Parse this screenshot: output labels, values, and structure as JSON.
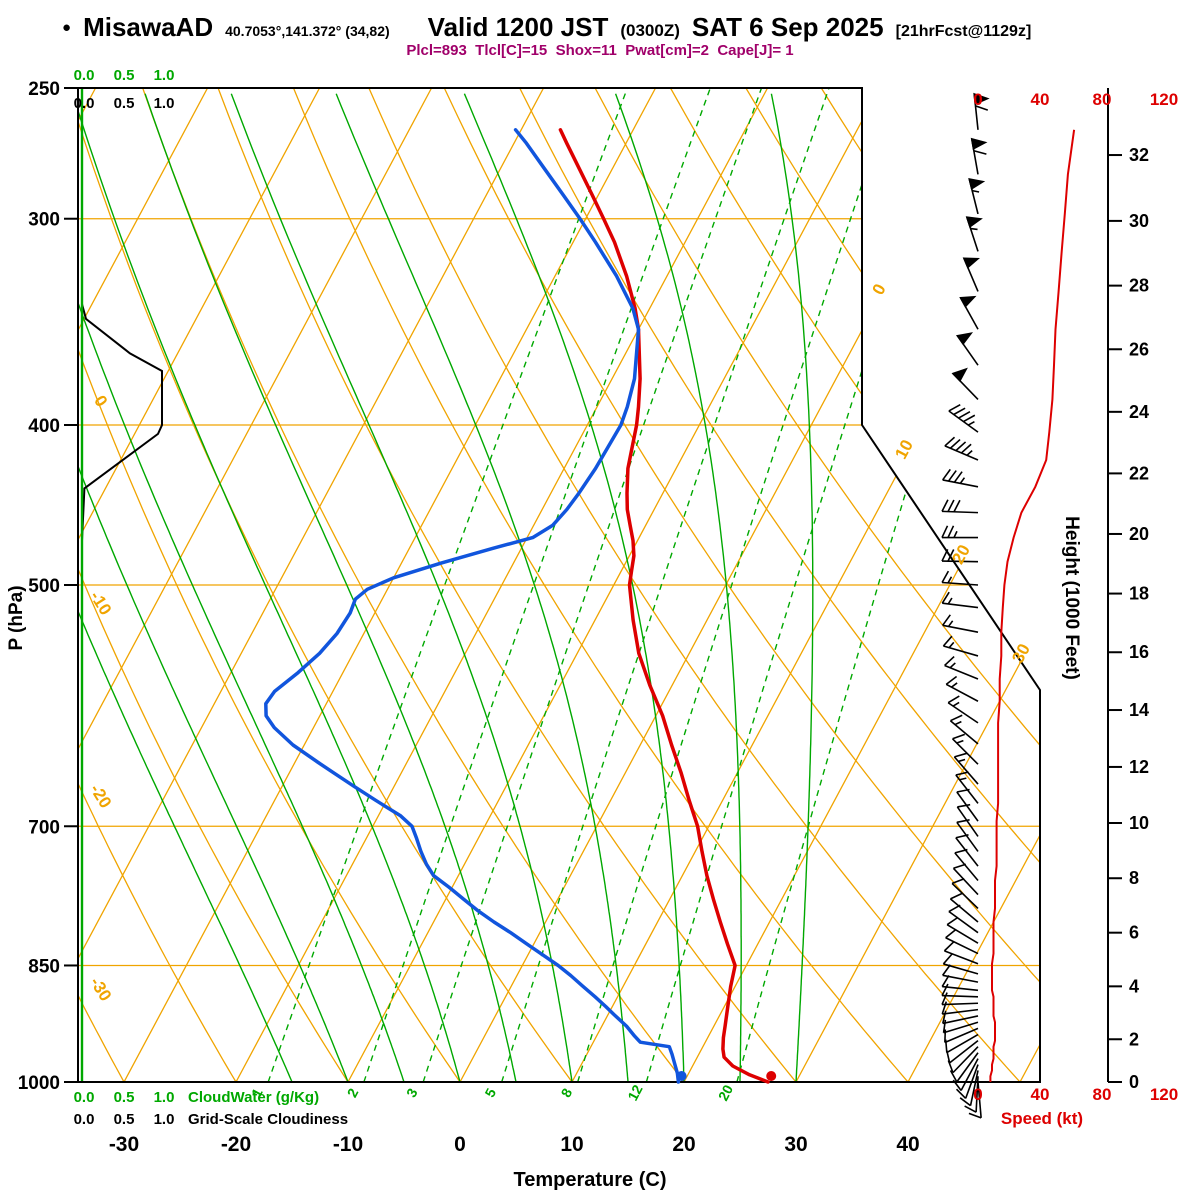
{
  "header": {
    "bullet": "●",
    "station": "MisawaAD",
    "coords": "40.7053°,141.372° (34,82)",
    "valid": "Valid 1200 JST",
    "valid_z": "(0300Z)",
    "valid_date": "SAT 6 Sep 2025",
    "forecast": "[21hrFcst@1129z]",
    "params": "Plcl=893  Tlcl[C]=15  Shox=11  Pwat[cm]=2  Cape[J]= 1"
  },
  "colors": {
    "grid_orange": "#f0a400",
    "line_green": "#00a800",
    "temp_red": "#dd0000",
    "dew_blue": "#1155dd",
    "params_magenta": "#a0006a",
    "black": "#000000"
  },
  "axes": {
    "pressure": {
      "label": "P (hPa)",
      "ticks": [
        250,
        300,
        400,
        500,
        700,
        850,
        1000
      ]
    },
    "temperature": {
      "label": "Temperature (C)",
      "ticks": [
        -30,
        -20,
        -10,
        0,
        10,
        20,
        30,
        40
      ]
    },
    "height": {
      "label": "Height (1000 Feet)",
      "ticks": [
        0,
        2,
        4,
        6,
        8,
        10,
        12,
        14,
        16,
        18,
        20,
        22,
        24,
        26,
        28,
        30,
        32
      ]
    },
    "speed": {
      "label": "Speed (kt)",
      "ticks": [
        0,
        40,
        80,
        120
      ]
    },
    "isotherm_edge_labels": [
      0,
      10,
      20,
      30
    ],
    "dry_adiabat_edge_labels": [
      0,
      -10,
      -20,
      -30
    ],
    "mixing_ratio_labels": [
      1,
      2,
      3,
      5,
      8,
      12,
      20
    ],
    "cloudwater": {
      "label": "CloudWater (g/Kg)",
      "ticks": [
        "0.0",
        "0.5",
        "1.0"
      ]
    },
    "cloudiness": {
      "label": "Grid-Scale Cloudiness",
      "ticks": [
        "0.0",
        "0.5",
        "1.0"
      ]
    }
  },
  "chart_data": {
    "type": "line",
    "chart_kind": "skew-t-log-p-sounding",
    "pressure_range_hpa": [
      250,
      1000
    ],
    "temperature_axis_range_c": [
      -30,
      40
    ],
    "surface_temperature_c": 27.5,
    "surface_dewpoint_c": 19.5,
    "isotherms_c": {
      "start": -100,
      "end": 50,
      "step": 10
    },
    "dry_adiabats_c": {
      "start": -40,
      "end": 110,
      "step": 10
    },
    "moist_adiabats_c": [
      -15,
      -10,
      -5,
      0,
      5,
      10,
      15,
      20,
      25,
      30
    ],
    "mixing_ratio_gkg": [
      1,
      2,
      3,
      5,
      8,
      12,
      20
    ],
    "temperature_profile_c": [
      [
        1000,
        27.5
      ],
      [
        990,
        25.5
      ],
      [
        978,
        23.6
      ],
      [
        966,
        22.4
      ],
      [
        955,
        21.9
      ],
      [
        940,
        21.4
      ],
      [
        925,
        21.0
      ],
      [
        900,
        20.3
      ],
      [
        875,
        19.6
      ],
      [
        850,
        19.0
      ],
      [
        825,
        17.3
      ],
      [
        800,
        15.6
      ],
      [
        775,
        13.9
      ],
      [
        750,
        12.2
      ],
      [
        725,
        10.6
      ],
      [
        700,
        9.0
      ],
      [
        675,
        7.0
      ],
      [
        650,
        5.0
      ],
      [
        625,
        2.8
      ],
      [
        600,
        0.6
      ],
      [
        575,
        -2.0
      ],
      [
        550,
        -4.5
      ],
      [
        525,
        -6.6
      ],
      [
        500,
        -8.6
      ],
      [
        490,
        -9.1
      ],
      [
        480,
        -9.6
      ],
      [
        470,
        -10.4
      ],
      [
        460,
        -11.4
      ],
      [
        450,
        -12.4
      ],
      [
        440,
        -13.2
      ],
      [
        425,
        -14.3
      ],
      [
        400,
        -15.6
      ],
      [
        390,
        -16.3
      ],
      [
        375,
        -17.5
      ],
      [
        350,
        -20.0
      ],
      [
        340,
        -21.3
      ],
      [
        325,
        -23.6
      ],
      [
        310,
        -26.3
      ],
      [
        300,
        -28.4
      ],
      [
        290,
        -30.6
      ],
      [
        280,
        -32.9
      ],
      [
        270,
        -35.3
      ],
      [
        265,
        -36.5
      ]
    ],
    "dewpoint_profile_c": [
      [
        1000,
        19.5
      ],
      [
        988,
        19.0
      ],
      [
        975,
        18.3
      ],
      [
        962,
        17.6
      ],
      [
        952,
        17.0
      ],
      [
        946,
        14.2
      ],
      [
        938,
        13.4
      ],
      [
        925,
        12.2
      ],
      [
        910,
        10.5
      ],
      [
        900,
        9.4
      ],
      [
        888,
        8.0
      ],
      [
        875,
        6.4
      ],
      [
        862,
        4.8
      ],
      [
        850,
        3.2
      ],
      [
        838,
        1.4
      ],
      [
        825,
        -0.6
      ],
      [
        812,
        -2.6
      ],
      [
        800,
        -4.6
      ],
      [
        788,
        -6.5
      ],
      [
        775,
        -8.4
      ],
      [
        762,
        -10.3
      ],
      [
        750,
        -12.2
      ],
      [
        738,
        -13.4
      ],
      [
        725,
        -14.5
      ],
      [
        712,
        -15.5
      ],
      [
        700,
        -16.5
      ],
      [
        690,
        -18.0
      ],
      [
        675,
        -21.0
      ],
      [
        662,
        -23.6
      ],
      [
        650,
        -26.0
      ],
      [
        640,
        -28.0
      ],
      [
        625,
        -31.0
      ],
      [
        610,
        -33.5
      ],
      [
        600,
        -34.8
      ],
      [
        590,
        -35.4
      ],
      [
        580,
        -35.2
      ],
      [
        565,
        -34.0
      ],
      [
        550,
        -33.0
      ],
      [
        535,
        -32.4
      ],
      [
        520,
        -32.2
      ],
      [
        510,
        -32.4
      ],
      [
        503,
        -31.8
      ],
      [
        495,
        -30.0
      ],
      [
        485,
        -26.5
      ],
      [
        475,
        -22.5
      ],
      [
        468,
        -19.5
      ],
      [
        460,
        -18.3
      ],
      [
        450,
        -17.8
      ],
      [
        440,
        -17.5
      ],
      [
        425,
        -17.2
      ],
      [
        400,
        -17.0
      ],
      [
        390,
        -17.3
      ],
      [
        375,
        -18.0
      ],
      [
        350,
        -20.0
      ],
      [
        340,
        -21.5
      ],
      [
        325,
        -24.5
      ],
      [
        310,
        -28.0
      ],
      [
        300,
        -30.5
      ],
      [
        290,
        -33.2
      ],
      [
        280,
        -36.0
      ],
      [
        270,
        -38.9
      ],
      [
        265,
        -40.5
      ]
    ],
    "wind_profile_p_dir_kt": [
      [
        1000,
        175,
        8
      ],
      [
        992,
        183,
        8
      ],
      [
        984,
        192,
        9
      ],
      [
        976,
        200,
        9
      ],
      [
        968,
        208,
        10
      ],
      [
        960,
        216,
        10
      ],
      [
        952,
        224,
        10
      ],
      [
        944,
        232,
        11
      ],
      [
        936,
        240,
        11
      ],
      [
        928,
        247,
        11
      ],
      [
        920,
        253,
        11
      ],
      [
        912,
        258,
        10
      ],
      [
        904,
        263,
        10
      ],
      [
        896,
        268,
        10
      ],
      [
        888,
        272,
        10
      ],
      [
        880,
        276,
        9
      ],
      [
        870,
        281,
        9
      ],
      [
        860,
        286,
        9
      ],
      [
        848,
        291,
        9
      ],
      [
        836,
        296,
        10
      ],
      [
        824,
        301,
        10
      ],
      [
        812,
        306,
        10
      ],
      [
        800,
        310,
        10
      ],
      [
        785,
        314,
        11
      ],
      [
        770,
        317,
        11
      ],
      [
        755,
        320,
        11
      ],
      [
        740,
        322,
        12
      ],
      [
        725,
        324,
        12
      ],
      [
        710,
        325,
        12
      ],
      [
        695,
        324,
        12
      ],
      [
        678,
        322,
        13
      ],
      [
        660,
        319,
        13
      ],
      [
        642,
        315,
        13
      ],
      [
        624,
        310,
        13
      ],
      [
        606,
        304,
        13
      ],
      [
        588,
        298,
        14
      ],
      [
        570,
        292,
        14
      ],
      [
        552,
        286,
        15
      ],
      [
        534,
        281,
        15
      ],
      [
        516,
        277,
        16
      ],
      [
        500,
        274,
        17
      ],
      [
        484,
        271,
        19
      ],
      [
        468,
        270,
        23
      ],
      [
        452,
        272,
        28
      ],
      [
        436,
        281,
        37
      ],
      [
        420,
        293,
        44
      ],
      [
        404,
        306,
        46
      ],
      [
        386,
        316,
        48
      ],
      [
        368,
        325,
        49
      ],
      [
        350,
        331,
        50
      ],
      [
        332,
        337,
        52
      ],
      [
        314,
        342,
        54
      ],
      [
        298,
        346,
        56
      ],
      [
        282,
        350,
        58
      ],
      [
        265,
        354,
        62
      ]
    ],
    "cloudiness_profile": [
      [
        1000,
        0
      ],
      [
        470,
        0
      ],
      [
        437,
        0.03
      ],
      [
        405,
        0.95
      ],
      [
        400,
        1
      ],
      [
        371,
        1
      ],
      [
        362,
        0.6
      ],
      [
        345,
        0.05
      ],
      [
        338,
        0
      ],
      [
        265,
        0
      ]
    ],
    "cloudwater_profile_gkg": [
      [
        1000,
        0
      ],
      [
        250,
        0
      ]
    ]
  }
}
